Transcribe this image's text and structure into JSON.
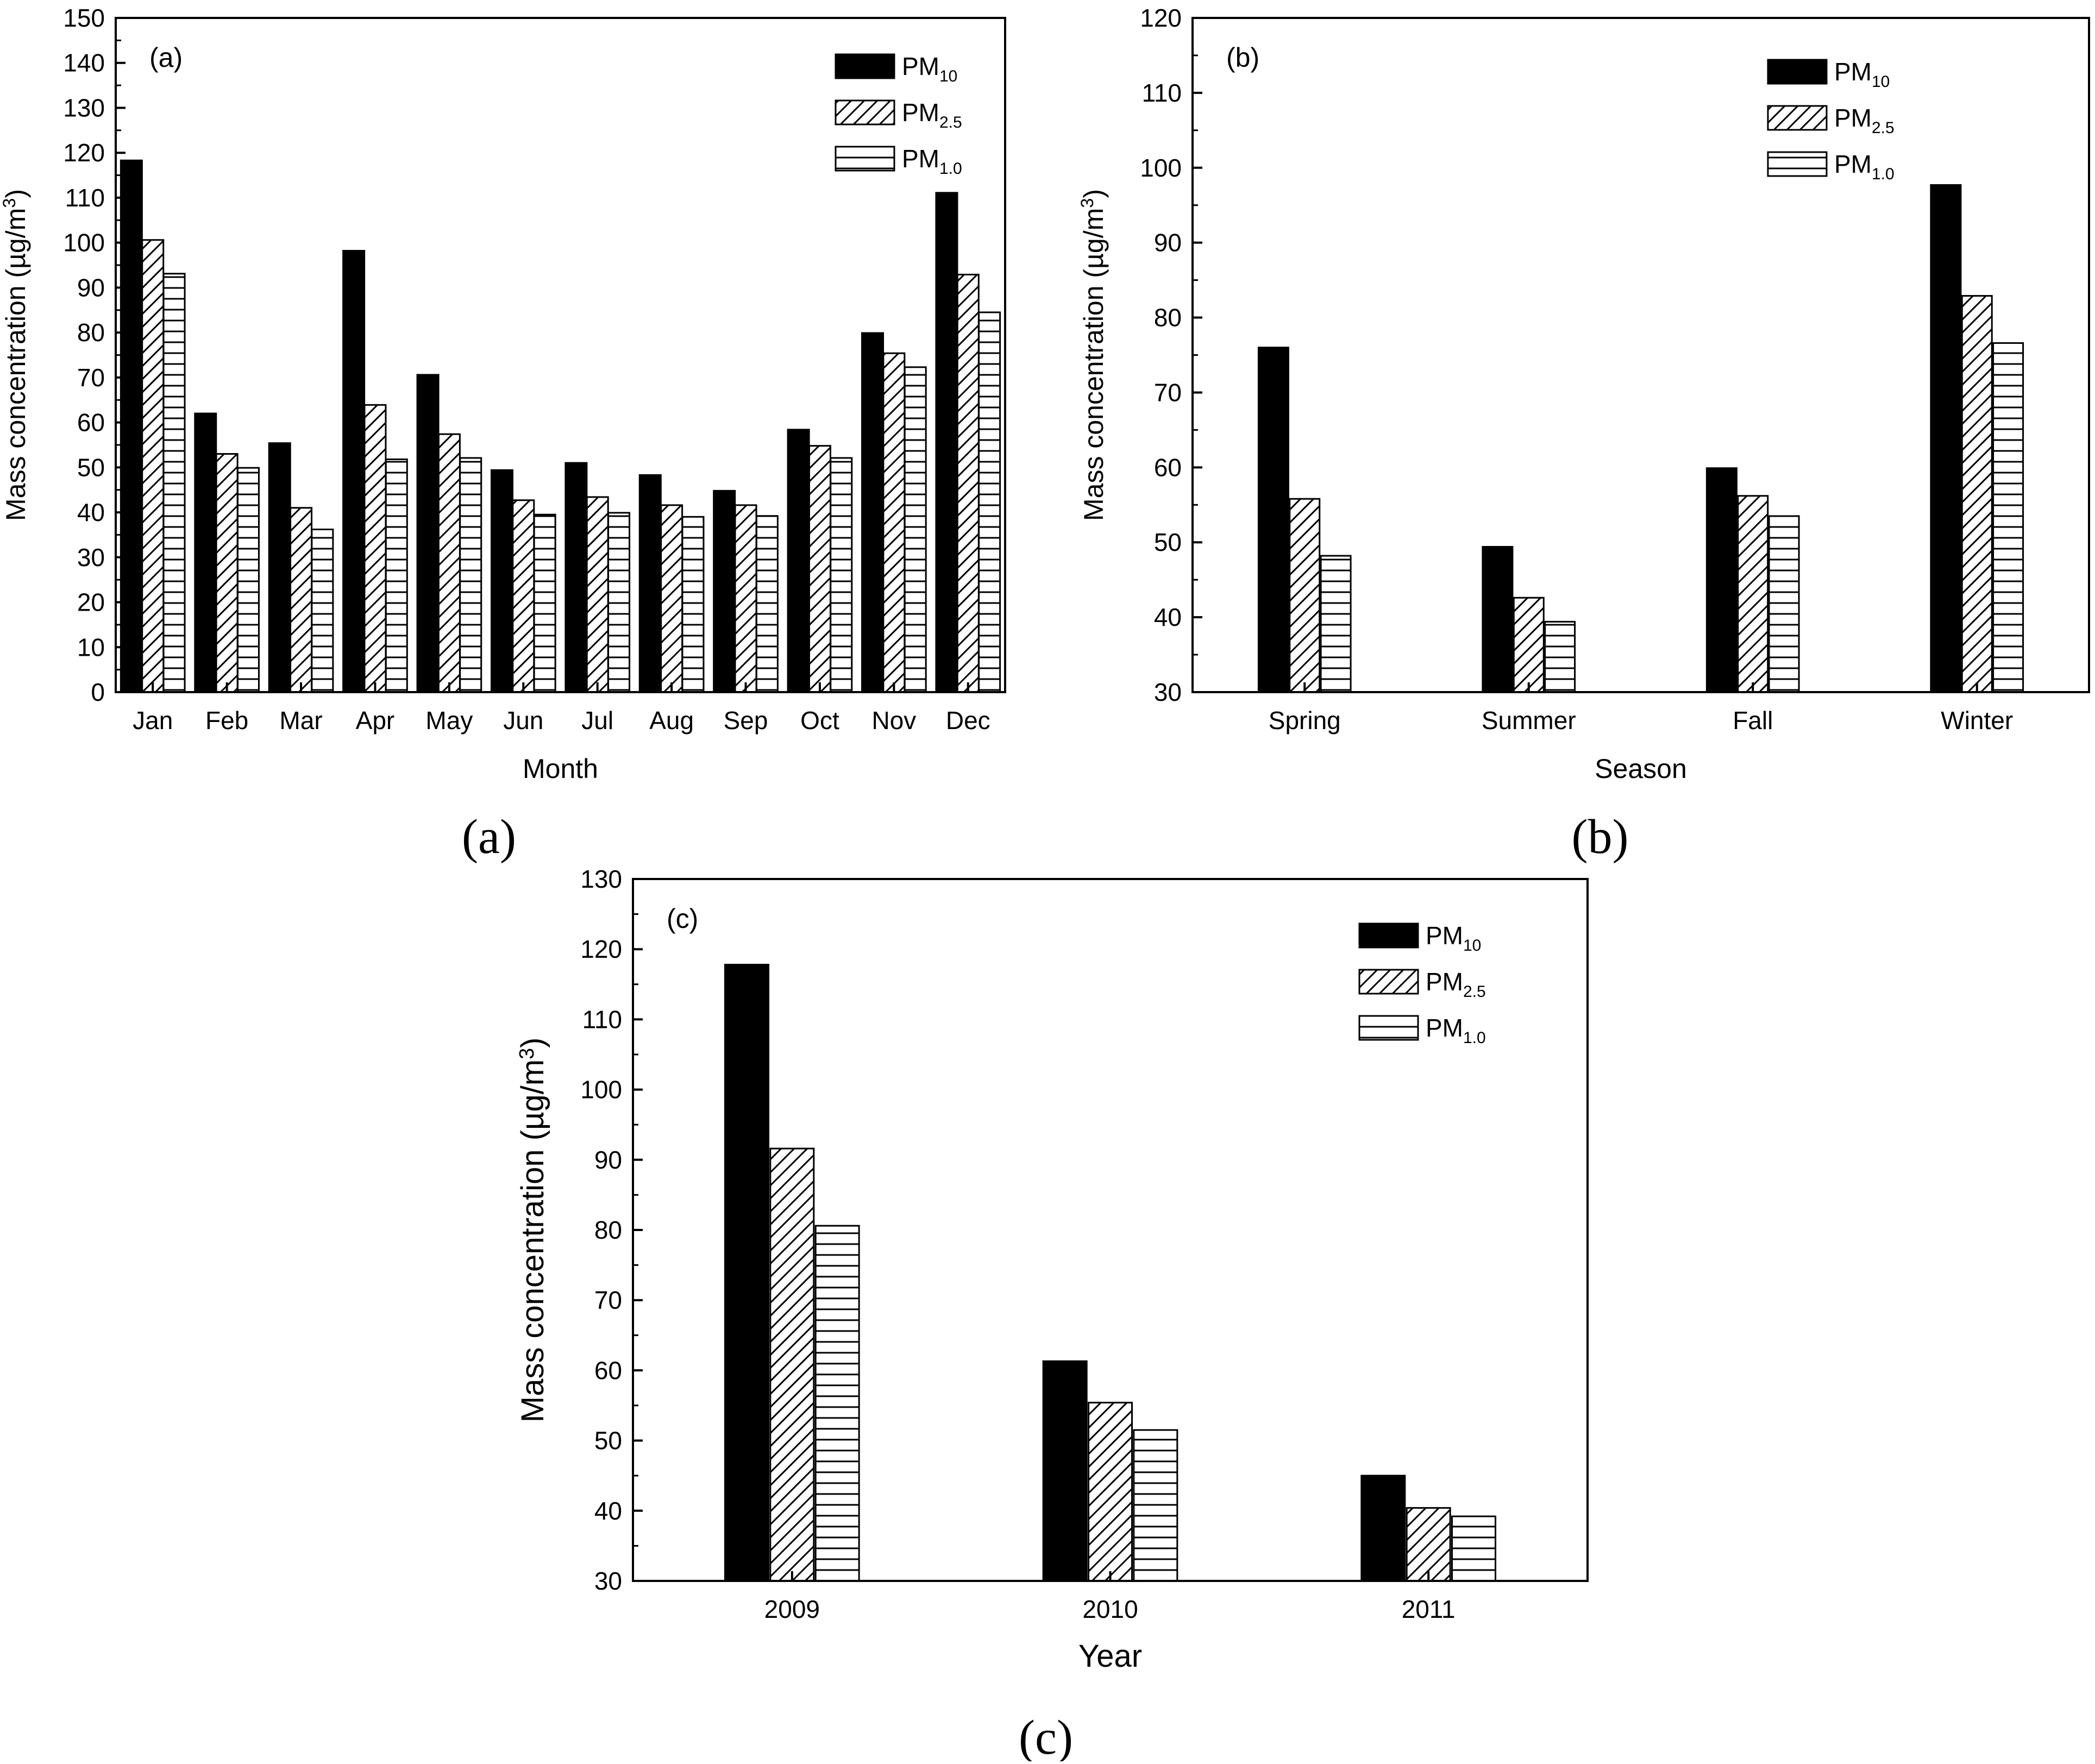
{
  "figure": {
    "series_names": [
      "PM10",
      "PM2.5",
      "PM1.0"
    ],
    "colors": {
      "bar_stroke": "#000000",
      "fill_solid": "#000000",
      "background": "#ffffff"
    }
  },
  "chart_data": [
    {
      "id": "a",
      "type": "bar",
      "panel_label": "(a)",
      "caption": "(a)",
      "xlabel": "Month",
      "ylabel": "Mass concentration (µg/m3)",
      "ylim": [
        0,
        150
      ],
      "yticks": [
        0,
        10,
        20,
        30,
        40,
        50,
        60,
        70,
        80,
        90,
        100,
        110,
        120,
        130,
        140,
        150
      ],
      "categories": [
        "Jan",
        "Feb",
        "Mar",
        "Apr",
        "May",
        "Jun",
        "Jul",
        "Aug",
        "Sep",
        "Oct",
        "Nov",
        "Dec"
      ],
      "series": [
        {
          "name": "PM10",
          "pattern": "solid",
          "values": [
            118.3,
            62.0,
            55.4,
            98.2,
            70.6,
            49.4,
            51.0,
            48.3,
            44.8,
            58.4,
            79.9,
            111.1
          ]
        },
        {
          "name": "PM2.5",
          "pattern": "diagonal",
          "values": [
            100.6,
            53.0,
            41.0,
            63.9,
            57.4,
            42.7,
            43.4,
            41.6,
            41.6,
            54.8,
            75.4,
            92.9
          ]
        },
        {
          "name": "PM1.0",
          "pattern": "horizontal",
          "values": [
            93.1,
            49.9,
            36.2,
            51.8,
            52.1,
            39.5,
            39.9,
            39.0,
            39.2,
            52.1,
            72.3,
            84.5
          ]
        }
      ],
      "legend": {
        "position": "top-right",
        "entries": [
          {
            "base": "PM",
            "sub": "10"
          },
          {
            "base": "PM",
            "sub": "2.5"
          },
          {
            "base": "PM",
            "sub": "1.0"
          }
        ]
      }
    },
    {
      "id": "b",
      "type": "bar",
      "panel_label": "(b)",
      "caption": "(b)",
      "xlabel": "Season",
      "ylabel": "Mass concentration (µg/m3)",
      "ylim": [
        30,
        120
      ],
      "yticks": [
        30,
        40,
        50,
        60,
        70,
        80,
        90,
        100,
        110,
        120
      ],
      "categories": [
        "Spring",
        "Summer",
        "Fall",
        "Winter"
      ],
      "series": [
        {
          "name": "PM10",
          "pattern": "solid",
          "values": [
            76.0,
            49.4,
            59.9,
            97.7
          ]
        },
        {
          "name": "PM2.5",
          "pattern": "diagonal",
          "values": [
            55.8,
            42.6,
            56.2,
            82.9
          ]
        },
        {
          "name": "PM1.0",
          "pattern": "horizontal",
          "values": [
            48.2,
            39.4,
            53.5,
            76.6
          ]
        }
      ],
      "legend": {
        "position": "top-right",
        "entries": [
          {
            "base": "PM",
            "sub": "10"
          },
          {
            "base": "PM",
            "sub": "2.5"
          },
          {
            "base": "PM",
            "sub": "1.0"
          }
        ]
      }
    },
    {
      "id": "c",
      "type": "bar",
      "panel_label": "(c)",
      "caption": "(c)",
      "xlabel": "Year",
      "ylabel": "Mass concentration (µg/m3)",
      "ylim": [
        30,
        130
      ],
      "yticks": [
        30,
        40,
        50,
        60,
        70,
        80,
        90,
        100,
        110,
        120,
        130
      ],
      "categories": [
        "2009",
        "2010",
        "2011"
      ],
      "series": [
        {
          "name": "PM10",
          "pattern": "solid",
          "values": [
            117.8,
            61.3,
            45.0
          ]
        },
        {
          "name": "PM2.5",
          "pattern": "diagonal",
          "values": [
            91.6,
            55.4,
            40.4
          ]
        },
        {
          "name": "PM1.0",
          "pattern": "horizontal",
          "values": [
            80.6,
            51.5,
            39.2
          ]
        }
      ],
      "legend": {
        "position": "top-right",
        "entries": [
          {
            "base": "PM",
            "sub": "10"
          },
          {
            "base": "PM",
            "sub": "2.5"
          },
          {
            "base": "PM",
            "sub": "1.0"
          }
        ]
      }
    }
  ]
}
